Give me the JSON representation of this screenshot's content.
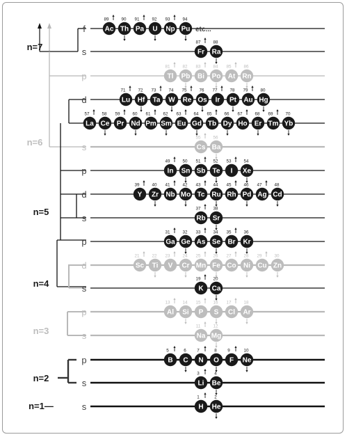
{
  "colors": {
    "dark": "#1a1a1a",
    "mid": "#424242",
    "light": "#bdbdbd",
    "line_dark": "#111111",
    "line_mid": "#333333",
    "line_light": "#b8b8b8"
  },
  "shells": [
    {
      "label": "n=7",
      "tone": "dark"
    },
    {
      "label": "n=6",
      "tone": "light"
    },
    {
      "label": "n=5",
      "tone": "dark"
    },
    {
      "label": "n=4",
      "tone": "dark"
    },
    {
      "label": "n=3",
      "tone": "light"
    },
    {
      "label": "n=2",
      "tone": "dark"
    },
    {
      "label": "n=1—",
      "tone": "dark"
    }
  ],
  "rows": [
    {
      "sub": "f",
      "tone": "dark",
      "suffix": "etc...",
      "elements": [
        [
          "Ac",
          "89"
        ],
        [
          "Th",
          "90"
        ],
        [
          "Pa",
          "91"
        ],
        [
          "U",
          "92"
        ],
        [
          "Np",
          "93"
        ],
        [
          "Pu",
          "94"
        ]
      ]
    },
    {
      "sub": "s",
      "tone": "dark",
      "elements": [
        [
          "Fr",
          "87"
        ],
        [
          "Ra",
          "88"
        ]
      ]
    },
    {
      "sub": "p",
      "tone": "light",
      "elements": [
        [
          "Tl",
          "81"
        ],
        [
          "Pb",
          "82"
        ],
        [
          "Bi",
          "83"
        ],
        [
          "Po",
          "84"
        ],
        [
          "At",
          "85"
        ],
        [
          "Rn",
          "86"
        ]
      ]
    },
    {
      "sub": "d",
      "tone": "dark",
      "elements": [
        [
          "Lu",
          "71"
        ],
        [
          "Hf",
          "72"
        ],
        [
          "Ta",
          "73"
        ],
        [
          "W",
          "74"
        ],
        [
          "Re",
          "75"
        ],
        [
          "Os",
          "76"
        ],
        [
          "Ir",
          "77"
        ],
        [
          "Pt",
          "78"
        ],
        [
          "Au",
          "79"
        ],
        [
          "Hg",
          "80"
        ]
      ]
    },
    {
      "sub": "f",
      "tone": "dark",
      "elements": [
        [
          "La",
          "57"
        ],
        [
          "Ce",
          "58"
        ],
        [
          "Pr",
          "59"
        ],
        [
          "Nd",
          "60"
        ],
        [
          "Pm",
          "61"
        ],
        [
          "Sm",
          "62"
        ],
        [
          "Eu",
          "63"
        ],
        [
          "Gd",
          "64"
        ],
        [
          "Tb",
          "65"
        ],
        [
          "Dy",
          "66"
        ],
        [
          "Ho",
          "67"
        ],
        [
          "Er",
          "68"
        ],
        [
          "Tm",
          "69"
        ],
        [
          "Yb",
          "70"
        ]
      ]
    },
    {
      "sub": "s",
      "tone": "light",
      "elements": [
        [
          "Cs",
          "55"
        ],
        [
          "Ba",
          "56"
        ]
      ]
    },
    {
      "sub": "p",
      "tone": "dark",
      "elements": [
        [
          "In",
          "49"
        ],
        [
          "Sn",
          "50"
        ],
        [
          "Sb",
          "51"
        ],
        [
          "Te",
          "52"
        ],
        [
          "I",
          "53"
        ],
        [
          "Xe",
          "54"
        ]
      ]
    },
    {
      "sub": "d",
      "tone": "dark",
      "elements": [
        [
          "Y",
          "39"
        ],
        [
          "Zr",
          "40"
        ],
        [
          "Nb",
          "41"
        ],
        [
          "Mo",
          "42"
        ],
        [
          "Tc",
          "43"
        ],
        [
          "Ru",
          "44"
        ],
        [
          "Rh",
          "45"
        ],
        [
          "Pd",
          "46"
        ],
        [
          "Ag",
          "47"
        ],
        [
          "Cd",
          "48"
        ]
      ]
    },
    {
      "sub": "s",
      "tone": "dark",
      "elements": [
        [
          "Rb",
          "37"
        ],
        [
          "Sr",
          "38"
        ]
      ]
    },
    {
      "sub": "p",
      "tone": "dark",
      "elements": [
        [
          "Ga",
          "31"
        ],
        [
          "Ge",
          "32"
        ],
        [
          "As",
          "33"
        ],
        [
          "Se",
          "34"
        ],
        [
          "Br",
          "35"
        ],
        [
          "Kr",
          "36"
        ]
      ]
    },
    {
      "sub": "d",
      "tone": "light",
      "elements": [
        [
          "Sc",
          "21"
        ],
        [
          "Ti",
          "22"
        ],
        [
          "V",
          "23"
        ],
        [
          "Cr",
          "24"
        ],
        [
          "Mn",
          "25"
        ],
        [
          "Fe",
          "26"
        ],
        [
          "Co",
          "27"
        ],
        [
          "Ni",
          "28"
        ],
        [
          "Cu",
          "29"
        ],
        [
          "Zn",
          "30"
        ]
      ]
    },
    {
      "sub": "s",
      "tone": "dark",
      "elements": [
        [
          "K",
          "19"
        ],
        [
          "Ca",
          "20"
        ]
      ]
    },
    {
      "sub": "p",
      "tone": "light",
      "elements": [
        [
          "Al",
          "13"
        ],
        [
          "Si",
          "14"
        ],
        [
          "P",
          "15"
        ],
        [
          "S",
          "16"
        ],
        [
          "Cl",
          "17"
        ],
        [
          "Ar",
          "18"
        ]
      ]
    },
    {
      "sub": "s",
      "tone": "light",
      "elements": [
        [
          "Na",
          "11"
        ],
        [
          "Mg",
          "12"
        ]
      ]
    },
    {
      "sub": "p",
      "tone": "dark",
      "elements": [
        [
          "B",
          "5"
        ],
        [
          "C",
          "6"
        ],
        [
          "N",
          "7"
        ],
        [
          "O",
          "8"
        ],
        [
          "F",
          "9"
        ],
        [
          "Ne",
          "10"
        ]
      ]
    },
    {
      "sub": "s",
      "tone": "dark",
      "elements": [
        [
          "Li",
          "3"
        ],
        [
          "Be",
          "4"
        ]
      ]
    },
    {
      "sub": "s",
      "tone": "dark",
      "elements": [
        [
          "H",
          "1"
        ],
        [
          "He",
          "2"
        ]
      ]
    }
  ]
}
